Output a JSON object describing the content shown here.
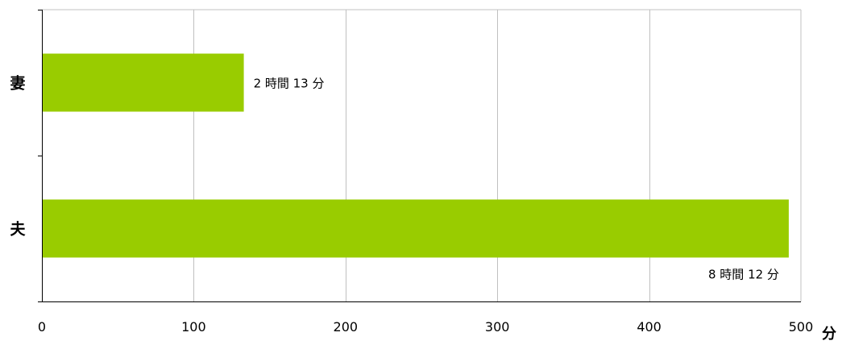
{
  "chart_data": {
    "type": "bar",
    "orientation": "horizontal",
    "categories": [
      "妻",
      "夫"
    ],
    "values": [
      133,
      492
    ],
    "data_labels": [
      "2 時間 13 分",
      "8 時間 12 分"
    ],
    "title": "",
    "xlabel": "分",
    "ylabel": "",
    "xlim": [
      0,
      500
    ],
    "xticks": [
      0,
      100,
      200,
      300,
      400,
      500
    ],
    "xtick_labels": [
      "0",
      "100",
      "200",
      "300",
      "400",
      "500"
    ],
    "grid": "vertical",
    "legend": "none",
    "colors": {
      "bar": "#99cc00",
      "grid": "#c0c0c0",
      "axis": "#000000"
    }
  }
}
